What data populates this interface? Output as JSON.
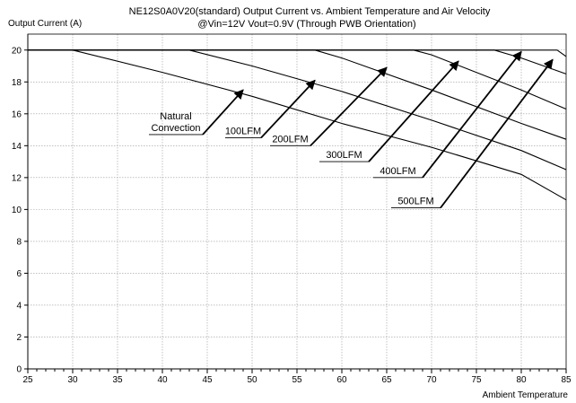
{
  "chart_data": {
    "type": "line",
    "title": "NE12S0A0V20(standard)  Output Current vs. Ambient Temperature and Air Velocity",
    "subtitle": "@Vin=12V Vout=0.9V (Through PWB Orientation)",
    "xlabel": "Ambient Temperature",
    "ylabel": "Output Current (A)",
    "xlim": [
      25,
      85
    ],
    "ylim": [
      0,
      21
    ],
    "xticks": [
      25,
      30,
      35,
      40,
      45,
      50,
      55,
      60,
      65,
      70,
      75,
      80,
      85
    ],
    "yticks": [
      0,
      2,
      4,
      6,
      8,
      10,
      12,
      14,
      16,
      18,
      20
    ],
    "grid": true,
    "series": [
      {
        "name": "Natural Convection",
        "x": [
          25,
          30,
          40,
          50,
          60,
          70,
          80,
          85
        ],
        "y": [
          20,
          20,
          18.6,
          17.1,
          15.4,
          13.9,
          12.2,
          10.6
        ]
      },
      {
        "name": "100LFM",
        "x": [
          25,
          43,
          50,
          60,
          70,
          80,
          85
        ],
        "y": [
          20,
          20,
          19,
          17.4,
          15.6,
          13.7,
          12.5
        ]
      },
      {
        "name": "200LFM",
        "x": [
          25,
          57,
          60,
          70,
          80,
          85
        ],
        "y": [
          20,
          20,
          19.5,
          17.5,
          15.4,
          14.4
        ]
      },
      {
        "name": "300LFM",
        "x": [
          25,
          68,
          70,
          80,
          85
        ],
        "y": [
          20,
          20,
          19.7,
          17.5,
          16.3
        ]
      },
      {
        "name": "400LFM",
        "x": [
          25,
          77,
          80,
          85
        ],
        "y": [
          20,
          20,
          19.5,
          18.5
        ]
      },
      {
        "name": "500LFM",
        "x": [
          25,
          84,
          85
        ],
        "y": [
          20,
          20,
          19.6
        ]
      }
    ],
    "annotations": [
      {
        "lines": [
          "Natural",
          "Convection"
        ],
        "arrow_from": [
          44.5,
          14.7
        ],
        "arrow_to": [
          49,
          17.5
        ]
      },
      {
        "lines": [
          "100LFM"
        ],
        "arrow_from": [
          51,
          14.5
        ],
        "arrow_to": [
          57,
          18.1
        ]
      },
      {
        "lines": [
          "200LFM"
        ],
        "arrow_from": [
          56.5,
          14.0
        ],
        "arrow_to": [
          65,
          18.9
        ]
      },
      {
        "lines": [
          "300LFM"
        ],
        "arrow_from": [
          63,
          13.0
        ],
        "arrow_to": [
          73,
          19.3
        ]
      },
      {
        "lines": [
          "400LFM"
        ],
        "arrow_from": [
          69,
          12.0
        ],
        "arrow_to": [
          80,
          19.9
        ]
      },
      {
        "lines": [
          "500LFM"
        ],
        "arrow_from": [
          71,
          10.1
        ],
        "arrow_to": [
          83.5,
          19.4
        ]
      }
    ]
  }
}
